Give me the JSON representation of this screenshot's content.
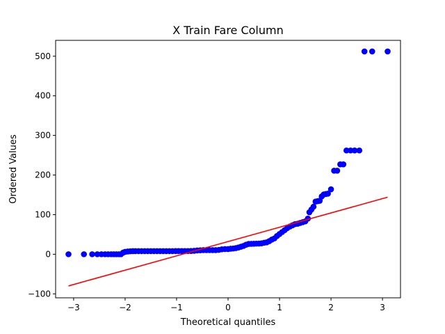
{
  "chart_data": {
    "type": "scatter",
    "title": "X Train Fare Column",
    "xlabel": "Theoretical quantiles",
    "ylabel": "Ordered Values",
    "xlim": [
      -3.35,
      3.35
    ],
    "ylim": [
      -110,
      540
    ],
    "xticks": [
      -3,
      -2,
      -1,
      0,
      1,
      2,
      3
    ],
    "yticks": [
      -100,
      0,
      100,
      200,
      300,
      400,
      500
    ],
    "grid": false,
    "colors": {
      "points": "#0000ff",
      "fit_line": "#ff0000",
      "axes": "#000000"
    },
    "fit_line": {
      "x": [
        -3.1,
        3.1
      ],
      "y": [
        -80,
        144
      ]
    },
    "series": [
      {
        "points": [
          [
            -3.1,
            0
          ],
          [
            -2.8,
            0
          ],
          [
            -2.64,
            0
          ],
          [
            -2.54,
            0
          ],
          [
            -2.46,
            0
          ],
          [
            -2.39,
            0
          ],
          [
            -2.33,
            0
          ],
          [
            -2.27,
            0
          ],
          [
            -2.22,
            0
          ],
          [
            -2.17,
            0
          ],
          [
            -2.12,
            0
          ],
          [
            -2.08,
            0
          ],
          [
            -2.04,
            4
          ],
          [
            -2.0,
            6
          ],
          [
            -1.95,
            7
          ],
          [
            -1.9,
            7.5
          ],
          [
            -1.85,
            7.8
          ],
          [
            -1.8,
            7.9
          ],
          [
            -1.74,
            7.9
          ],
          [
            -1.68,
            7.9
          ],
          [
            -1.62,
            7.9
          ],
          [
            -1.56,
            7.9
          ],
          [
            -1.5,
            7.9
          ],
          [
            -1.44,
            7.9
          ],
          [
            -1.38,
            7.9
          ],
          [
            -1.32,
            7.9
          ],
          [
            -1.26,
            7.9
          ],
          [
            -1.2,
            7.9
          ],
          [
            -1.14,
            7.9
          ],
          [
            -1.08,
            7.9
          ],
          [
            -1.02,
            8
          ],
          [
            -0.96,
            8
          ],
          [
            -0.9,
            8
          ],
          [
            -0.84,
            8
          ],
          [
            -0.78,
            8.1
          ],
          [
            -0.72,
            8.3
          ],
          [
            -0.66,
            8.7
          ],
          [
            -0.6,
            9.5
          ],
          [
            -0.54,
            10
          ],
          [
            -0.48,
            10.5
          ],
          [
            -0.42,
            10.5
          ],
          [
            -0.36,
            10.5
          ],
          [
            -0.3,
            10.5
          ],
          [
            -0.24,
            10.5
          ],
          [
            -0.18,
            11
          ],
          [
            -0.12,
            12.5
          ],
          [
            -0.06,
            13
          ],
          [
            0.0,
            13
          ],
          [
            0.05,
            14
          ],
          [
            0.1,
            14.5
          ],
          [
            0.15,
            15.5
          ],
          [
            0.2,
            17
          ],
          [
            0.25,
            19
          ],
          [
            0.3,
            21
          ],
          [
            0.35,
            24
          ],
          [
            0.4,
            26
          ],
          [
            0.45,
            26.2
          ],
          [
            0.5,
            26.5
          ],
          [
            0.55,
            26.8
          ],
          [
            0.6,
            27
          ],
          [
            0.65,
            27.5
          ],
          [
            0.7,
            29
          ],
          [
            0.75,
            30
          ],
          [
            0.8,
            33
          ],
          [
            0.85,
            37
          ],
          [
            0.9,
            40
          ],
          [
            0.95,
            46
          ],
          [
            1.0,
            51
          ],
          [
            1.05,
            56
          ],
          [
            1.1,
            61
          ],
          [
            1.15,
            66
          ],
          [
            1.2,
            70
          ],
          [
            1.25,
            73
          ],
          [
            1.3,
            76
          ],
          [
            1.35,
            77
          ],
          [
            1.4,
            79
          ],
          [
            1.45,
            81
          ],
          [
            1.5,
            83
          ],
          [
            1.55,
            90
          ],
          [
            1.58,
            106
          ],
          [
            1.62,
            113
          ],
          [
            1.66,
            120
          ],
          [
            1.7,
            133
          ],
          [
            1.74,
            134
          ],
          [
            1.78,
            135
          ],
          [
            1.82,
            146
          ],
          [
            1.86,
            151
          ],
          [
            1.9,
            152
          ],
          [
            1.94,
            153
          ],
          [
            2.0,
            164
          ],
          [
            2.06,
            211
          ],
          [
            2.12,
            211
          ],
          [
            2.18,
            227
          ],
          [
            2.24,
            227
          ],
          [
            2.3,
            262
          ],
          [
            2.38,
            262
          ],
          [
            2.46,
            262
          ],
          [
            2.55,
            262
          ],
          [
            2.65,
            512
          ],
          [
            2.8,
            512
          ],
          [
            3.1,
            512
          ]
        ]
      }
    ]
  }
}
